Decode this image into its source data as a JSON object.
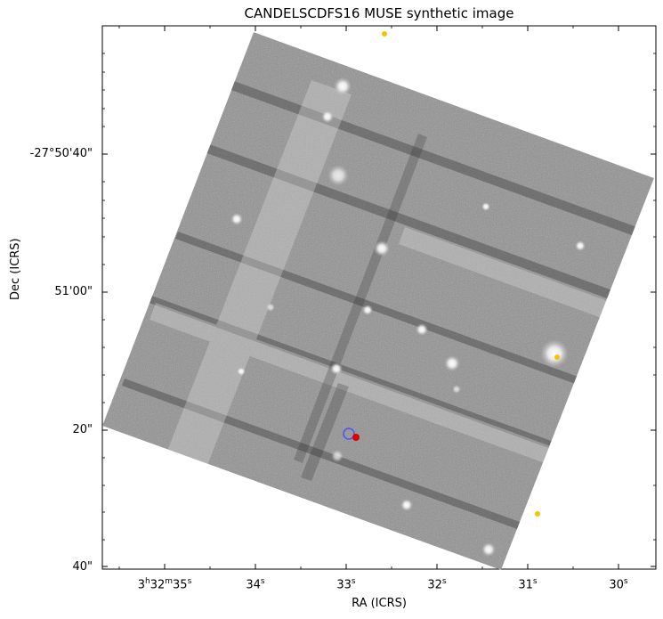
{
  "figure": {
    "title": "CANDELSCDFS16 MUSE synthetic image",
    "xlabel": "RA (ICRS)",
    "ylabel": "Dec (ICRS)"
  },
  "image": {
    "description_type": "grayscale astronomical field",
    "background_color": "#ffffff",
    "field_color_light": "#b4b4b4",
    "field_color_dark": "#4a4a4a"
  },
  "axes": {
    "yticks": [
      {
        "label": "-27°50'40\""
      },
      {
        "label": "51'00\""
      },
      {
        "label": "20\""
      },
      {
        "label": "40\""
      }
    ],
    "xticks": [
      {
        "h": "3",
        "m": "32",
        "s": "35",
        "label_prefix": "3",
        "sup_h": "h",
        "mid": "32",
        "sup_m": "m",
        "sec": "35",
        "sup_s": "s"
      },
      {
        "sec": "34",
        "sup_s": "s"
      },
      {
        "sec": "33",
        "sup_s": "s"
      },
      {
        "sec": "32",
        "sup_s": "s"
      },
      {
        "sec": "31",
        "sup_s": "s"
      },
      {
        "sec": "30",
        "sup_s": "s"
      }
    ]
  },
  "markers": {
    "yellow_color": "#f5c400",
    "red_color": "#e00000",
    "blue_circle_color": "#4455ff",
    "yellow_count": 3
  }
}
